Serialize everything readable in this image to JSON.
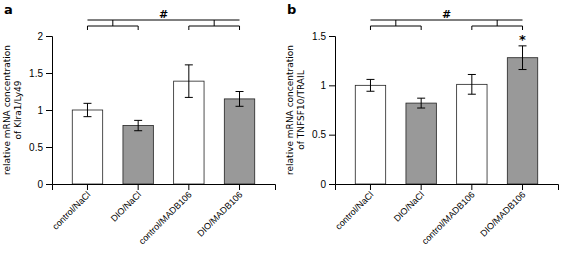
{
  "chart_data": [
    {
      "type": "bar",
      "title": "a",
      "categories": [
        "control/NaCl",
        "DIO/NaCl",
        "control/MADB106",
        "DIO/MADB106"
      ],
      "values": [
        1.0,
        0.79,
        1.39,
        1.15
      ],
      "errors": [
        0.09,
        0.07,
        0.22,
        0.1
      ],
      "y_label": "relative mRNA concentration\nof Klra1/Ly49",
      "ylim": [
        0,
        2.0
      ],
      "yticks": [
        0,
        0.5,
        1,
        1.5,
        2
      ],
      "colors": [
        "white",
        "#999999",
        "white",
        "#999999"
      ],
      "annotations": [
        {
          "text": "#"
        }
      ]
    },
    {
      "type": "bar",
      "title": "b",
      "categories": [
        "control/NaCl",
        "DIO/NaCl",
        "control/MADB106",
        "DIO/MADB106"
      ],
      "values": [
        1.0,
        0.82,
        1.01,
        1.28
      ],
      "errors": [
        0.06,
        0.05,
        0.1,
        0.12
      ],
      "y_label": "relative mRNA concentration\nof TNFSF10/TRAIL",
      "ylim": [
        0,
        1.5
      ],
      "yticks": [
        0,
        0.5,
        1,
        1.5
      ],
      "colors": [
        "white",
        "#999999",
        "white",
        "#999999"
      ],
      "annotations": [
        {
          "text": "#"
        },
        {
          "text": "*",
          "x": "DIO/MADB106"
        }
      ]
    }
  ]
}
